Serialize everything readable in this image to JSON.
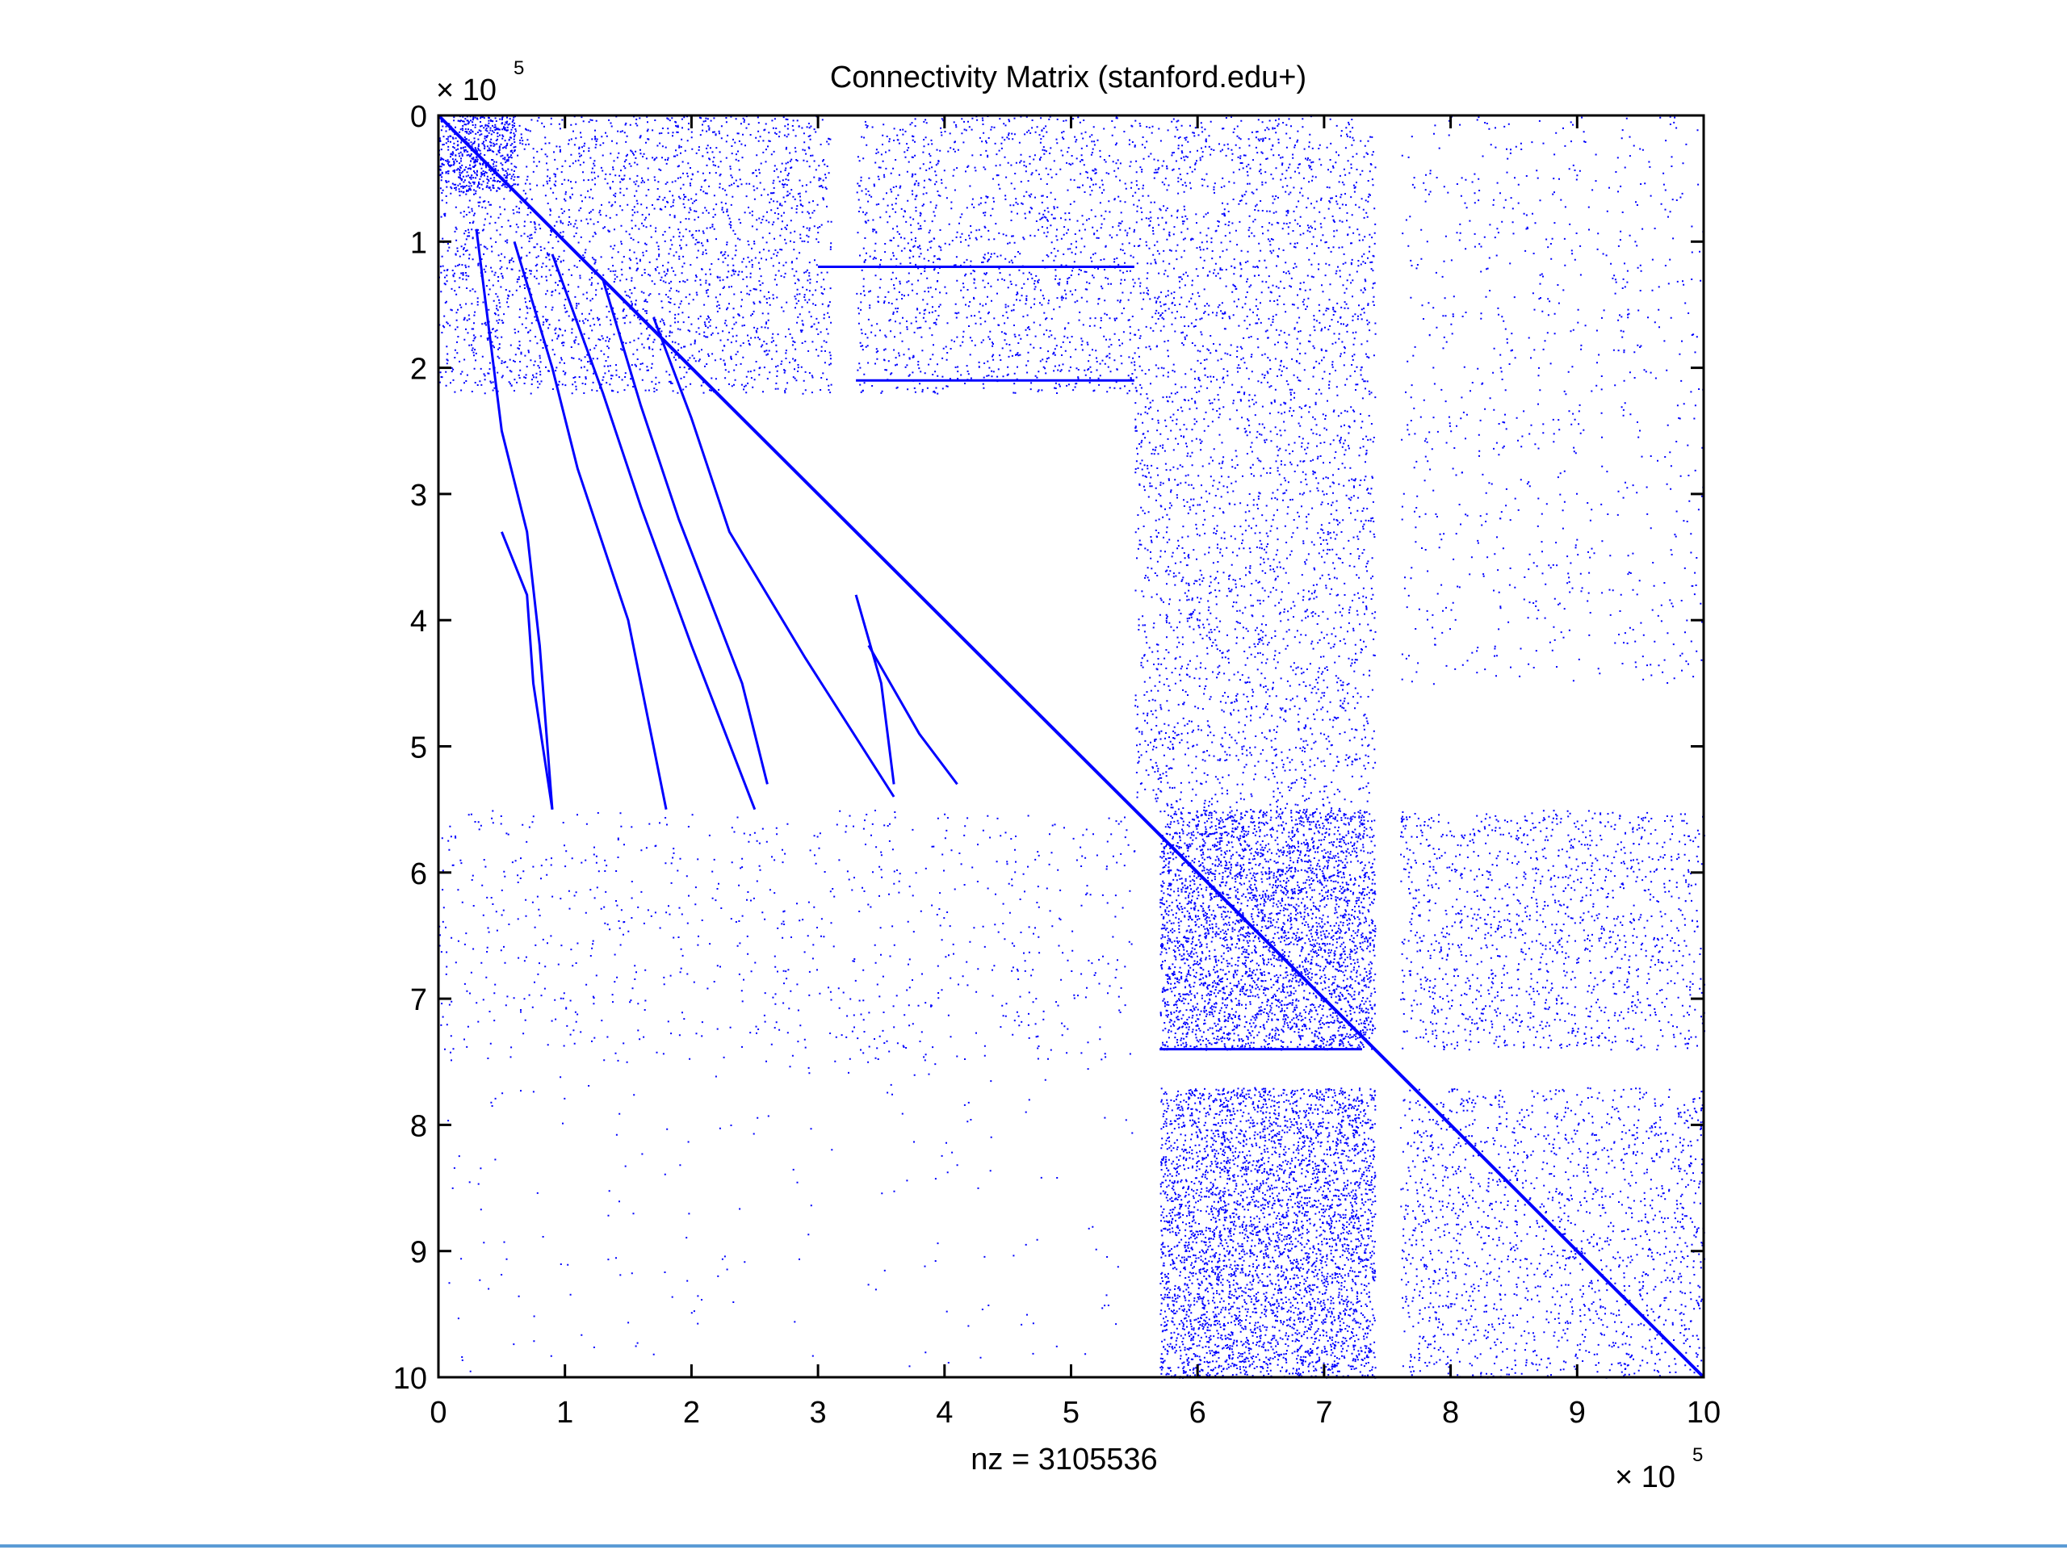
{
  "chart_data": {
    "type": "scatter",
    "title": "Connectivity Matrix (stanford.edu+)",
    "xlabel": "nz = 3105536",
    "ylabel": "",
    "x_multiplier": {
      "base": "× 10",
      "exponent": "5"
    },
    "y_multiplier": {
      "base": "× 10",
      "exponent": "5"
    },
    "xlim": [
      0,
      10
    ],
    "ylim": [
      0,
      10
    ],
    "y_reversed": true,
    "xticks": [
      "0",
      "1",
      "2",
      "3",
      "4",
      "5",
      "6",
      "7",
      "8",
      "9",
      "10"
    ],
    "yticks": [
      "0",
      "1",
      "2",
      "3",
      "4",
      "5",
      "6",
      "7",
      "8",
      "9",
      "10"
    ],
    "grid": false,
    "legend": "none",
    "series": [
      {
        "dense_blocks": [
          {
            "x": [
              0,
              0.6
            ],
            "y": [
              0,
              0.6
            ],
            "density": 0.9
          },
          {
            "x": [
              0,
              3.1
            ],
            "y": [
              0,
              2.2
            ],
            "density": 0.25
          },
          {
            "x": [
              3.3,
              5.5
            ],
            "y": [
              0,
              2.2
            ],
            "density": 0.2
          },
          {
            "x": [
              5.5,
              7.4
            ],
            "y": [
              0,
              5.5
            ],
            "density": 0.2
          },
          {
            "x": [
              7.6,
              10
            ],
            "y": [
              0,
              4.5
            ],
            "density": 0.05
          },
          {
            "x": [
              5.7,
              7.4
            ],
            "y": [
              5.5,
              7.4
            ],
            "density": 0.75
          },
          {
            "x": [
              7.6,
              10
            ],
            "y": [
              5.5,
              7.4
            ],
            "density": 0.2
          },
          {
            "x": [
              5.7,
              7.4
            ],
            "y": [
              7.7,
              10
            ],
            "density": 0.7
          },
          {
            "x": [
              7.6,
              10
            ],
            "y": [
              7.7,
              10
            ],
            "density": 0.2
          },
          {
            "x": [
              0,
              5.5
            ],
            "y": [
              5.5,
              7.5
            ],
            "density": 0.05
          },
          {
            "x": [
              0,
              5.5
            ],
            "y": [
              7.5,
              10
            ],
            "density": 0.008
          }
        ],
        "diagonal": {
          "from": [
            0,
            0
          ],
          "to": [
            10,
            10
          ]
        },
        "curves": [
          [
            [
              0.3,
              0.9
            ],
            [
              0.5,
              2.5
            ],
            [
              0.7,
              3.3
            ],
            [
              0.8,
              4.2
            ],
            [
              0.9,
              5.5
            ]
          ],
          [
            [
              0.6,
              1.0
            ],
            [
              0.9,
              2.0
            ],
            [
              1.1,
              2.8
            ],
            [
              1.5,
              4.0
            ],
            [
              1.8,
              5.5
            ]
          ],
          [
            [
              0.9,
              1.1
            ],
            [
              1.3,
              2.2
            ],
            [
              1.6,
              3.1
            ],
            [
              2.0,
              4.2
            ],
            [
              2.5,
              5.5
            ]
          ],
          [
            [
              1.3,
              1.3
            ],
            [
              1.6,
              2.3
            ],
            [
              1.9,
              3.2
            ],
            [
              2.4,
              4.5
            ],
            [
              2.6,
              5.3
            ]
          ],
          [
            [
              1.7,
              1.6
            ],
            [
              2.0,
              2.4
            ],
            [
              2.3,
              3.3
            ],
            [
              2.9,
              4.3
            ],
            [
              3.6,
              5.4
            ]
          ],
          [
            [
              0.5,
              3.3
            ],
            [
              0.7,
              3.8
            ],
            [
              0.75,
              4.5
            ],
            [
              0.9,
              5.5
            ]
          ],
          [
            [
              3.3,
              3.8
            ],
            [
              3.5,
              4.5
            ],
            [
              3.6,
              5.3
            ]
          ],
          [
            [
              3.4,
              4.2
            ],
            [
              3.8,
              4.9
            ],
            [
              4.1,
              5.3
            ]
          ]
        ],
        "hlines": [
          {
            "y": 1.2,
            "x": [
              3.0,
              5.5
            ]
          },
          {
            "y": 2.1,
            "x": [
              3.3,
              5.5
            ]
          },
          {
            "y": 7.4,
            "x": [
              5.7,
              7.3
            ]
          }
        ]
      }
    ],
    "colors": {
      "marks": "#0000ff",
      "axes": "#000000",
      "background": "#ffffff",
      "bottom_rule": "#5b9bd5"
    }
  }
}
